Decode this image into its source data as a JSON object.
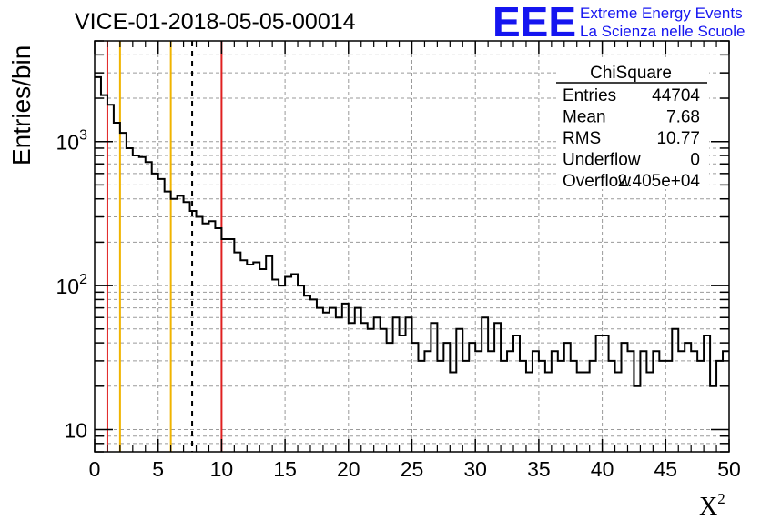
{
  "chart_data": {
    "type": "histogram",
    "title": "VICE-01-2018-05-05-00014",
    "xlabel": "X",
    "xlabel_exponent": "2",
    "ylabel": "Entries/bin",
    "xlim": [
      0,
      50
    ],
    "ylim": [
      7,
      5000
    ],
    "yscale": "log",
    "grid": true,
    "bin_width": 0.5,
    "x_ticks": [
      "0",
      "5",
      "10",
      "15",
      "20",
      "25",
      "30",
      "35",
      "40",
      "45",
      "50"
    ],
    "y_ticks": [
      {
        "value": 10,
        "base": "10",
        "exp": ""
      },
      {
        "value": 100,
        "base": "10",
        "exp": "2"
      },
      {
        "value": 1000,
        "base": "10",
        "exp": "3"
      }
    ],
    "values": [
      2800,
      2100,
      1800,
      1350,
      1150,
      900,
      800,
      780,
      720,
      600,
      550,
      450,
      400,
      420,
      380,
      330,
      300,
      270,
      280,
      250,
      210,
      210,
      170,
      150,
      140,
      145,
      130,
      160,
      110,
      100,
      115,
      120,
      100,
      85,
      80,
      70,
      65,
      70,
      60,
      75,
      55,
      70,
      55,
      50,
      60,
      50,
      40,
      60,
      45,
      60,
      40,
      30,
      35,
      55,
      30,
      40,
      25,
      50,
      30,
      40,
      35,
      60,
      35,
      55,
      30,
      35,
      45,
      30,
      25,
      35,
      30,
      25,
      35,
      30,
      40,
      30,
      25,
      25,
      30,
      45,
      45,
      30,
      25,
      40,
      35,
      20,
      35,
      25,
      35,
      30,
      30,
      50,
      35,
      40,
      35,
      30,
      45,
      20,
      30,
      35
    ],
    "reference_lines": [
      {
        "x": 1,
        "color": "#e02020",
        "style": "solid"
      },
      {
        "x": 2,
        "color": "#f0b400",
        "style": "solid"
      },
      {
        "x": 6,
        "color": "#f0b400",
        "style": "solid"
      },
      {
        "x": 7.68,
        "color": "#000000",
        "style": "dashed"
      },
      {
        "x": 10,
        "color": "#e02020",
        "style": "solid"
      }
    ],
    "stats": {
      "name": "ChiSquare",
      "rows": [
        {
          "label": "Entries",
          "value": "44704"
        },
        {
          "label": "Mean",
          "value": "7.68"
        },
        {
          "label": "RMS",
          "value": "10.77"
        },
        {
          "label": "Underflow",
          "value": "0"
        },
        {
          "label": "Overflow",
          "value": "2.405e+04"
        }
      ]
    }
  },
  "logo": {
    "mark": "EEE",
    "line1": "Extreme Energy Events",
    "line2": "La Scienza nelle Scuole",
    "color": "#1515f0"
  }
}
